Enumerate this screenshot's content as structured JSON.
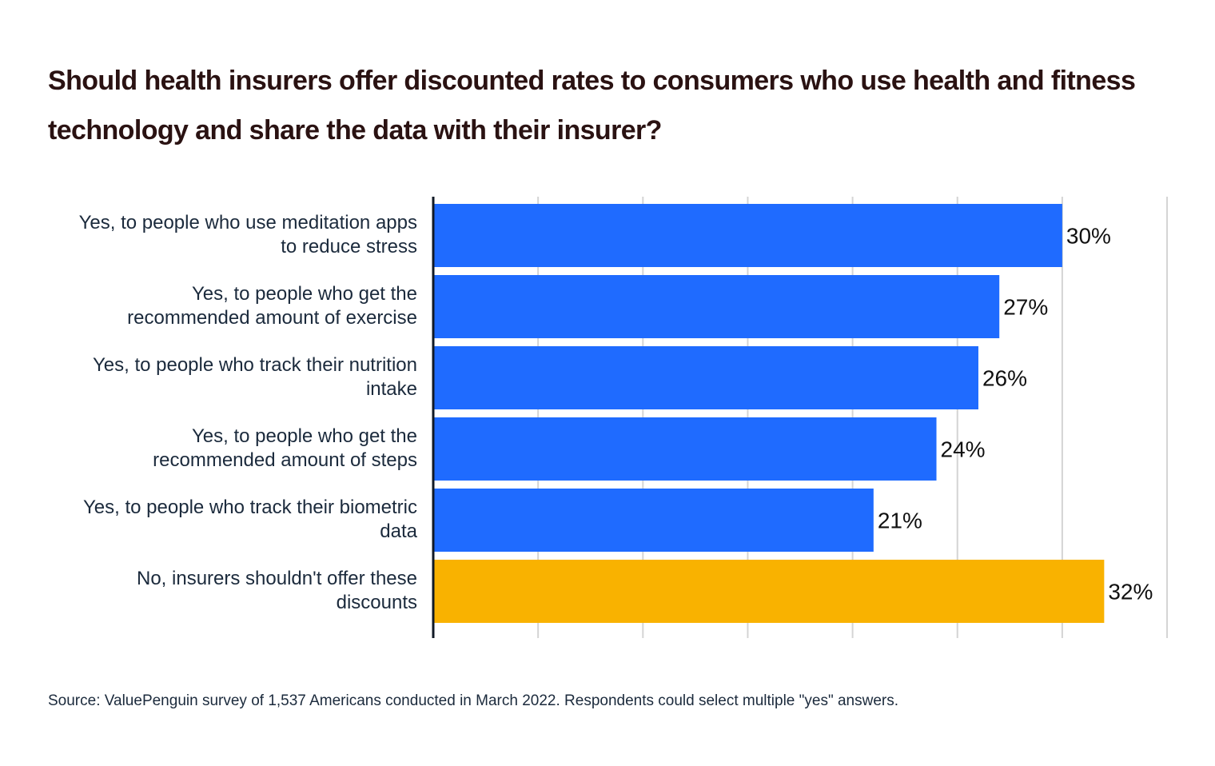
{
  "chart_data": {
    "type": "bar",
    "orientation": "horizontal",
    "title": "Should health insurers offer discounted rates to consumers who use health and fitness technology and share the data with their insurer?",
    "categories": [
      "Yes, to people who use meditation apps to reduce stress",
      "Yes, to people who get the recommended amount of exercise",
      "Yes, to people who track their nutrition intake",
      "Yes, to people who get the recommended amount of steps",
      "Yes, to people who track their biometric data",
      "No, insurers shouldn't offer these discounts"
    ],
    "category_lines": [
      [
        "Yes, to people who use meditation apps",
        "to reduce stress"
      ],
      [
        "Yes, to people who get the",
        "recommended amount of exercise"
      ],
      [
        "Yes, to people who track their nutrition",
        "intake"
      ],
      [
        "Yes, to people who get the",
        "recommended amount of steps"
      ],
      [
        "Yes, to people who track their biometric",
        "data"
      ],
      [
        "No, insurers shouldn't offer these",
        "discounts"
      ]
    ],
    "values": [
      30,
      27,
      26,
      24,
      21,
      32
    ],
    "value_labels": [
      "30%",
      "27%",
      "26%",
      "24%",
      "21%",
      "32%"
    ],
    "bar_colors": [
      "#1f6bff",
      "#1f6bff",
      "#1f6bff",
      "#1f6bff",
      "#1f6bff",
      "#f9b200"
    ],
    "xlim": [
      0,
      35
    ],
    "gridlines": [
      5,
      10,
      15,
      20,
      25,
      30,
      35
    ],
    "grid": true,
    "legend": "none",
    "xlabel": "",
    "ylabel": ""
  },
  "source": "Source: ValuePenguin survey of 1,537 Americans conducted in March 2022. Respondents could select multiple \"yes\" answers."
}
